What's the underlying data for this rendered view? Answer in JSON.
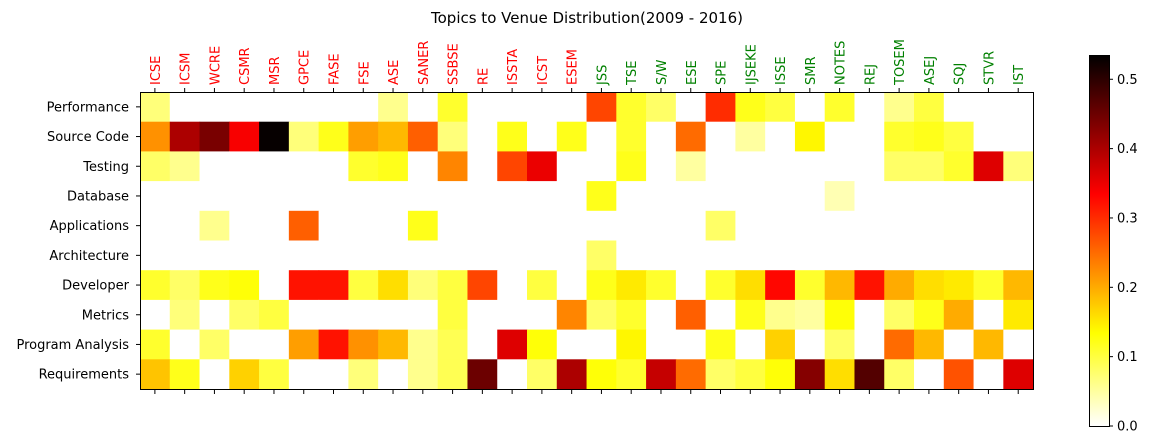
{
  "chart_data": {
    "type": "heatmap",
    "title": "Topics to Venue Distribution(2009 - 2016)",
    "x_categories": [
      "ICSE",
      "ICSM",
      "WCRE",
      "CSMR",
      "MSR",
      "GPCE",
      "FASE",
      "FSE",
      "ASE",
      "SANER",
      "SSBSE",
      "RE",
      "ISSTA",
      "ICST",
      "ESEM",
      "JSS",
      "TSE",
      "S/W",
      "ESE",
      "SPE",
      "IJSEKE",
      "ISSE",
      "SMR",
      "NOTES",
      "REJ",
      "TOSEM",
      "ASEJ",
      "SQJ",
      "STVR",
      "IST"
    ],
    "x_label_colors": [
      "#ff0000",
      "#ff0000",
      "#ff0000",
      "#ff0000",
      "#ff0000",
      "#ff0000",
      "#ff0000",
      "#ff0000",
      "#ff0000",
      "#ff0000",
      "#ff0000",
      "#ff0000",
      "#ff0000",
      "#ff0000",
      "#ff0000",
      "#008000",
      "#008000",
      "#008000",
      "#008000",
      "#008000",
      "#008000",
      "#008000",
      "#008000",
      "#008000",
      "#008000",
      "#008000",
      "#008000",
      "#008000",
      "#008000",
      "#008000"
    ],
    "y_categories": [
      "Performance",
      "Source Code",
      "Testing",
      "Database",
      "Applications",
      "Architecture",
      "Developer",
      "Metrics",
      "Program Analysis",
      "Requirements"
    ],
    "values": [
      [
        0.07,
        0,
        0,
        0,
        0,
        0,
        0,
        0,
        0.06,
        0,
        0.11,
        0,
        0,
        0,
        0,
        0.28,
        0.11,
        0.08,
        0,
        0.3,
        0.12,
        0.1,
        0,
        0.11,
        0,
        0.06,
        0.1,
        0,
        0,
        0
      ],
      [
        0.22,
        0.4,
        0.44,
        0.34,
        0.53,
        0.07,
        0.12,
        0.21,
        0.19,
        0.26,
        0.07,
        0,
        0.12,
        0,
        0.12,
        0,
        0.11,
        0,
        0.25,
        0,
        0.05,
        0,
        0.14,
        0,
        0,
        0.11,
        0.12,
        0.1,
        0,
        0
      ],
      [
        0.08,
        0.06,
        0,
        0,
        0,
        0,
        0,
        0.11,
        0.12,
        0,
        0.23,
        0,
        0.28,
        0.35,
        0,
        0,
        0.12,
        0,
        0.05,
        0,
        0,
        0,
        0,
        0,
        0,
        0.08,
        0.08,
        0.11,
        0.36,
        0.07
      ],
      [
        0,
        0,
        0,
        0,
        0,
        0,
        0,
        0,
        0,
        0,
        0,
        0,
        0,
        0,
        0,
        0.12,
        0,
        0,
        0,
        0,
        0,
        0,
        0,
        0.04,
        0,
        0,
        0,
        0,
        0,
        0
      ],
      [
        0,
        0,
        0.06,
        0,
        0,
        0.26,
        0,
        0,
        0,
        0.12,
        0,
        0,
        0,
        0,
        0,
        0,
        0,
        0,
        0,
        0.08,
        0,
        0,
        0,
        0,
        0,
        0,
        0,
        0,
        0,
        0
      ],
      [
        0,
        0,
        0,
        0,
        0,
        0,
        0,
        0,
        0,
        0,
        0,
        0,
        0,
        0,
        0,
        0.08,
        0,
        0,
        0,
        0,
        0,
        0,
        0,
        0,
        0,
        0,
        0,
        0,
        0,
        0
      ],
      [
        0.11,
        0.08,
        0.12,
        0.13,
        0,
        0.32,
        0.32,
        0.1,
        0.16,
        0.07,
        0.1,
        0.28,
        0,
        0.1,
        0,
        0.12,
        0.15,
        0.11,
        0,
        0.11,
        0.16,
        0.33,
        0.11,
        0.19,
        0.32,
        0.2,
        0.16,
        0.15,
        0.11,
        0.19
      ],
      [
        0,
        0.07,
        0,
        0.08,
        0.1,
        0,
        0,
        0,
        0,
        0,
        0.1,
        0,
        0,
        0,
        0.23,
        0.08,
        0.11,
        0,
        0.26,
        0,
        0.12,
        0.06,
        0.05,
        0.13,
        0,
        0.08,
        0.12,
        0.2,
        0,
        0.15
      ],
      [
        0.11,
        0,
        0.08,
        0,
        0,
        0.21,
        0.32,
        0.22,
        0.19,
        0.06,
        0.09,
        0,
        0.36,
        0.13,
        0,
        0,
        0.14,
        0,
        0,
        0.12,
        0,
        0.17,
        0,
        0.08,
        0,
        0.25,
        0.19,
        0,
        0.19,
        0
      ],
      [
        0.18,
        0.12,
        0,
        0.17,
        0.1,
        0,
        0,
        0.07,
        0,
        0.06,
        0.09,
        0.45,
        0,
        0.08,
        0.4,
        0.13,
        0.11,
        0.38,
        0.25,
        0.08,
        0.1,
        0.13,
        0.43,
        0.16,
        0.47,
        0.08,
        0,
        0.27,
        0,
        0.36
      ]
    ],
    "colorbar": {
      "colormap": "hot_r",
      "vmin": 0.0,
      "vmax": 0.535,
      "ticks": [
        0.0,
        0.1,
        0.2,
        0.3,
        0.4,
        0.5
      ],
      "tick_labels": [
        "0.0",
        "0.1",
        "0.2",
        "0.3",
        "0.4",
        "0.5"
      ]
    }
  }
}
